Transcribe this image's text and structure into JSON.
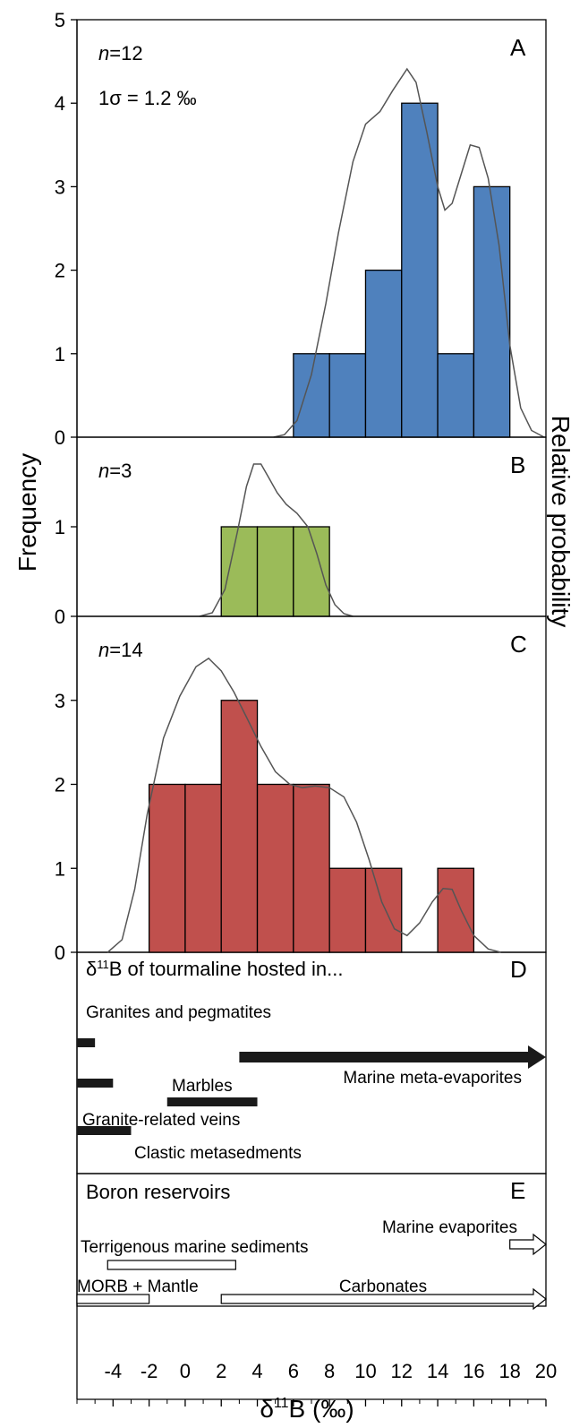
{
  "chart_data": {
    "type": "bar",
    "axes": {
      "xlabel": "δ¹¹B (‰)",
      "ylabel_left": "Frequency",
      "ylabel_right": "Relative probability",
      "xlim": [
        -6,
        20
      ],
      "x_ticks": [
        -4,
        -2,
        0,
        2,
        4,
        6,
        8,
        10,
        12,
        14,
        16,
        18,
        20
      ]
    },
    "panels": [
      {
        "label": "A",
        "n_italic": "n",
        "n_value": "=12",
        "sigma_text": "1σ = 1.2 ‰",
        "ylim": [
          0,
          5
        ],
        "y_ticks": [
          0,
          1,
          2,
          3,
          4,
          5
        ],
        "color": "#4f81bd",
        "bins": [
          {
            "x0": 6,
            "x1": 8,
            "count": 1
          },
          {
            "x0": 8,
            "x1": 10,
            "count": 1
          },
          {
            "x0": 10,
            "x1": 12,
            "count": 2
          },
          {
            "x0": 12,
            "x1": 14,
            "count": 4
          },
          {
            "x0": 14,
            "x1": 16,
            "count": 1
          },
          {
            "x0": 16,
            "x1": 18,
            "count": 3
          }
        ],
        "curve": [
          [
            4.9,
            0
          ],
          [
            5.5,
            0.03
          ],
          [
            6.2,
            0.2
          ],
          [
            7,
            0.75
          ],
          [
            7.8,
            1.6
          ],
          [
            8.5,
            2.45
          ],
          [
            9.3,
            3.3
          ],
          [
            10,
            3.75
          ],
          [
            10.8,
            3.9
          ],
          [
            11.5,
            4.15
          ],
          [
            12.3,
            4.41
          ],
          [
            12.8,
            4.25
          ],
          [
            13.4,
            3.65
          ],
          [
            14,
            3
          ],
          [
            14.4,
            2.72
          ],
          [
            14.8,
            2.8
          ],
          [
            15.3,
            3.15
          ],
          [
            15.8,
            3.5
          ],
          [
            16.3,
            3.47
          ],
          [
            16.8,
            3.1
          ],
          [
            17.4,
            2.3
          ],
          [
            18,
            1.1
          ],
          [
            18.6,
            0.35
          ],
          [
            19.2,
            0.08
          ],
          [
            19.9,
            0
          ]
        ]
      },
      {
        "label": "B",
        "n_italic": "n",
        "n_value": "=3",
        "ylim": [
          0,
          2
        ],
        "y_ticks": [
          0,
          1
        ],
        "color": "#9bbb59",
        "bins": [
          {
            "x0": 2,
            "x1": 4,
            "count": 1
          },
          {
            "x0": 4,
            "x1": 6,
            "count": 1
          },
          {
            "x0": 6,
            "x1": 8,
            "count": 1
          }
        ],
        "curve": [
          [
            0.8,
            0
          ],
          [
            1.5,
            0.04
          ],
          [
            2.2,
            0.3
          ],
          [
            2.9,
            0.95
          ],
          [
            3.4,
            1.45
          ],
          [
            3.8,
            1.7
          ],
          [
            4.2,
            1.7
          ],
          [
            4.6,
            1.56
          ],
          [
            5.1,
            1.38
          ],
          [
            5.6,
            1.25
          ],
          [
            6.2,
            1.15
          ],
          [
            6.8,
            1
          ],
          [
            7.3,
            0.7
          ],
          [
            7.8,
            0.35
          ],
          [
            8.3,
            0.13
          ],
          [
            8.8,
            0.03
          ],
          [
            9.3,
            0
          ]
        ]
      },
      {
        "label": "C",
        "n_italic": "n",
        "n_value": "=14",
        "ylim": [
          0,
          4
        ],
        "y_ticks": [
          0,
          1,
          2,
          3
        ],
        "color": "#c0504d",
        "bins": [
          {
            "x0": -2,
            "x1": 0,
            "count": 2
          },
          {
            "x0": 0,
            "x1": 2,
            "count": 2
          },
          {
            "x0": 2,
            "x1": 4,
            "count": 3
          },
          {
            "x0": 4,
            "x1": 6,
            "count": 2
          },
          {
            "x0": 6,
            "x1": 8,
            "count": 2
          },
          {
            "x0": 8,
            "x1": 10,
            "count": 1
          },
          {
            "x0": 10,
            "x1": 12,
            "count": 1
          },
          {
            "x0": 14,
            "x1": 16,
            "count": 1
          }
        ],
        "curve": [
          [
            -4.3,
            0
          ],
          [
            -3.5,
            0.15
          ],
          [
            -2.8,
            0.75
          ],
          [
            -2.1,
            1.65
          ],
          [
            -1.2,
            2.55
          ],
          [
            -0.3,
            3.05
          ],
          [
            0.6,
            3.4
          ],
          [
            1.3,
            3.5
          ],
          [
            2,
            3.35
          ],
          [
            2.7,
            3.1
          ],
          [
            3.4,
            2.8
          ],
          [
            4.2,
            2.45
          ],
          [
            5,
            2.15
          ],
          [
            5.8,
            2
          ],
          [
            6.5,
            1.96
          ],
          [
            7.2,
            1.98
          ],
          [
            8,
            1.96
          ],
          [
            8.8,
            1.85
          ],
          [
            9.5,
            1.55
          ],
          [
            10.2,
            1.1
          ],
          [
            10.9,
            0.6
          ],
          [
            11.6,
            0.28
          ],
          [
            12.3,
            0.2
          ],
          [
            13,
            0.35
          ],
          [
            13.7,
            0.6
          ],
          [
            14.3,
            0.76
          ],
          [
            14.8,
            0.75
          ],
          [
            15.3,
            0.5
          ],
          [
            16,
            0.2
          ],
          [
            16.8,
            0.04
          ],
          [
            17.5,
            0
          ]
        ]
      }
    ],
    "tourmaline_panel": {
      "label": "D",
      "title": "δ¹¹B of tourmaline hosted in...",
      "bars": [
        {
          "name": "Granites and pegmatites",
          "x0": -6,
          "x1": -5
        },
        {
          "name": "Marine meta-evaporites",
          "x0": 3,
          "x1": 20,
          "open_ended": true
        },
        {
          "name": "Granite-related veins",
          "x0": -6,
          "x1": -4
        },
        {
          "name": "Marbles",
          "x0": -1,
          "x1": 4
        },
        {
          "name": "Clastic metasedments",
          "x0": -6,
          "x1": -3
        }
      ]
    },
    "reservoir_panel": {
      "label": "E",
      "title": "Boron reservoirs",
      "bars": [
        {
          "name": "Marine evaporites",
          "x0": 18,
          "x1": 20,
          "open_ended": true
        },
        {
          "name": "Terrigenous marine sediments",
          "x0": -4.3,
          "x1": 2.8
        },
        {
          "name": "MORB + Mantle",
          "x0": -6,
          "x1": -2
        },
        {
          "name": "Carbonates",
          "x0": 2,
          "x1": 20,
          "open_ended": true
        }
      ]
    }
  }
}
